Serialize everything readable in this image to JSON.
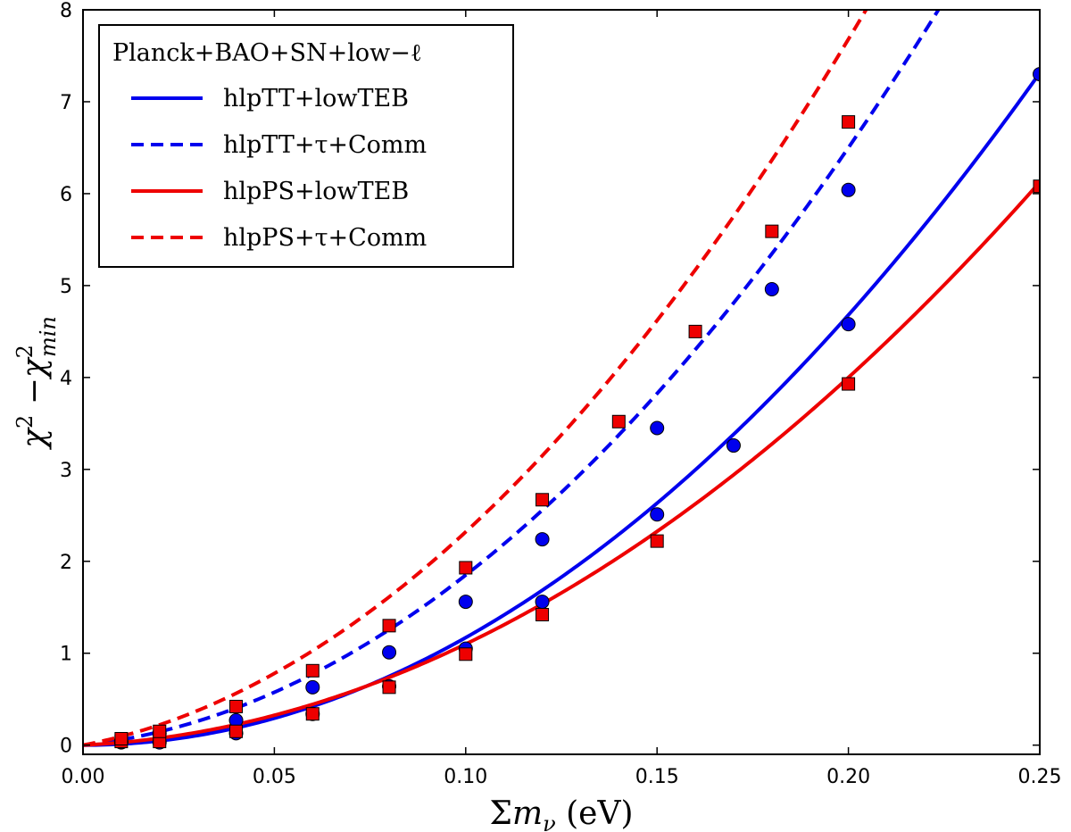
{
  "chart_data": {
    "type": "line",
    "xlabel": "Σm_ν (eV)",
    "ylabel": "χ² − χ²_min",
    "xlim": [
      0.0,
      0.25
    ],
    "ylim": [
      -0.1,
      8
    ],
    "xticks": [
      0.0,
      0.05,
      0.1,
      0.15,
      0.2,
      0.25
    ],
    "xtick_labels": [
      "0.00",
      "0.05",
      "0.10",
      "0.15",
      "0.20",
      "0.25"
    ],
    "yticks": [
      0,
      1,
      2,
      3,
      4,
      5,
      6,
      7,
      8
    ],
    "ytick_labels": [
      "0",
      "1",
      "2",
      "3",
      "4",
      "5",
      "6",
      "7",
      "8"
    ],
    "legend_title": "Planck+BAO+SN+low−ℓ",
    "legend_position": "top-left",
    "series": [
      {
        "name": "hlpTT+lowTEB",
        "color": "#0000ee",
        "linestyle": "solid",
        "marker": "circle",
        "x": [
          0.01,
          0.02,
          0.04,
          0.06,
          0.08,
          0.1,
          0.12,
          0.15,
          0.17,
          0.2,
          0.25
        ],
        "y": [
          0.03,
          0.03,
          0.13,
          0.34,
          0.64,
          1.05,
          1.56,
          2.51,
          3.26,
          4.58,
          7.3
        ]
      },
      {
        "name": "hlpTT+τ+Comm",
        "color": "#0000ee",
        "linestyle": "dashed",
        "marker": "circle",
        "x": [
          0.01,
          0.02,
          0.04,
          0.06,
          0.08,
          0.1,
          0.12,
          0.15,
          0.18,
          0.2
        ],
        "y": [
          0.04,
          0.13,
          0.27,
          0.63,
          1.01,
          1.56,
          2.24,
          3.45,
          4.96,
          6.04
        ]
      },
      {
        "name": "hlpPS+lowTEB",
        "color": "#ee0000",
        "linestyle": "solid",
        "marker": "square",
        "x": [
          0.01,
          0.02,
          0.04,
          0.06,
          0.08,
          0.1,
          0.12,
          0.15,
          0.2,
          0.25
        ],
        "y": [
          0.04,
          0.04,
          0.15,
          0.34,
          0.63,
          0.99,
          1.42,
          2.22,
          3.93,
          6.08
        ]
      },
      {
        "name": "hlpPS+τ+Comm",
        "color": "#ee0000",
        "linestyle": "dashed",
        "marker": "square",
        "x": [
          0.01,
          0.02,
          0.04,
          0.06,
          0.08,
          0.1,
          0.12,
          0.14,
          0.16,
          0.18,
          0.2
        ],
        "y": [
          0.07,
          0.15,
          0.42,
          0.81,
          1.3,
          1.93,
          2.67,
          3.52,
          4.5,
          5.59,
          6.78
        ]
      }
    ],
    "fits": [
      {
        "series": "hlpTT+lowTEB",
        "a": 117,
        "b": 0
      },
      {
        "series": "hlpTT+τ+Comm",
        "a": 140,
        "b": 4.5
      },
      {
        "series": "hlpPS+lowTEB",
        "a": 90,
        "b": 2
      },
      {
        "series": "hlpPS+τ+Comm",
        "a": 152,
        "b": 8
      }
    ]
  }
}
